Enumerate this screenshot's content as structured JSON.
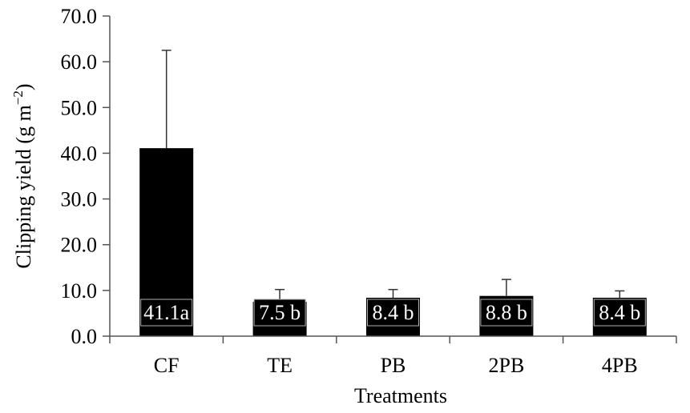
{
  "chart_data": {
    "type": "bar",
    "title": "",
    "xlabel": "Treatments",
    "ylabel_main": "Clipping yield (g m",
    "ylabel_sup": "−2",
    "ylabel_close": ")",
    "ylim": [
      0,
      70
    ],
    "ytick_values": [
      0,
      10,
      20,
      30,
      40,
      50,
      60,
      70
    ],
    "ytick_labels": [
      "0.0",
      "10.0",
      "20.0",
      "30.0",
      "40.0",
      "50.0",
      "60.0",
      "70.0"
    ],
    "categories": [
      "CF",
      "TE",
      "PB",
      "2PB",
      "4PB"
    ],
    "values": [
      41.1,
      7.5,
      8.4,
      8.8,
      8.4
    ],
    "error_upper": [
      62.5,
      10.2,
      10.2,
      12.4,
      9.9
    ],
    "data_labels": [
      "41.1a",
      "7.5 b",
      "8.4 b",
      "8.8 b",
      "8.4 b"
    ],
    "bar_color": "#000000",
    "grid": false,
    "legend": "none"
  }
}
